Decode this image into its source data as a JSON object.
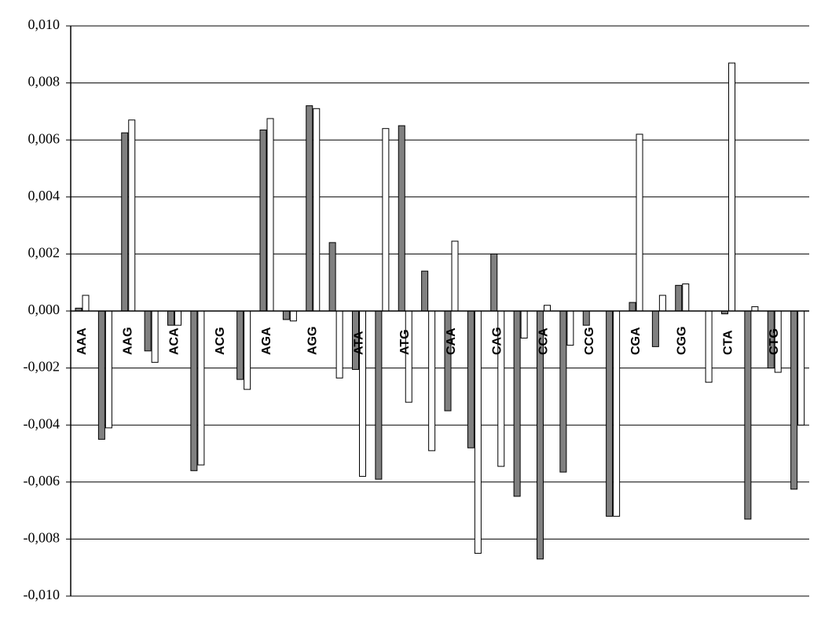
{
  "chart_data": {
    "type": "bar",
    "categories": [
      "AAA",
      null,
      "AAG",
      null,
      "ACA",
      null,
      "ACG",
      null,
      "AGA",
      null,
      "AGG",
      null,
      "ATA",
      null,
      "ATG",
      null,
      "CAA",
      null,
      "CAG",
      null,
      "CCA",
      null,
      "CCG",
      null,
      "CGA",
      null,
      "CGG",
      null,
      "CTA",
      null,
      "CTG",
      null
    ],
    "series": [
      {
        "color": "#808080",
        "values": [
          0.0001,
          -0.0045,
          0.00625,
          -0.0014,
          -0.0005,
          -0.0056,
          0,
          -0.0024,
          0.00635,
          -0.0003,
          0.0072,
          0.0024,
          -0.00205,
          -0.0059,
          0.0065,
          0.0014,
          -0.0035,
          -0.0048,
          0.002,
          -0.0065,
          -0.0087,
          -0.00565,
          -0.0005,
          -0.0072,
          0.0003,
          -0.00125,
          0.0009,
          0,
          -0.0001,
          -0.0073,
          -0.002,
          -0.00625
        ]
      },
      {
        "color": "#ffffff",
        "values": [
          0.00055,
          -0.0041,
          0.0067,
          -0.0018,
          -0.0005,
          -0.0054,
          0,
          -0.00275,
          0.00675,
          -0.00035,
          0.0071,
          -0.00235,
          -0.0058,
          0.0064,
          -0.0032,
          -0.0049,
          0.00245,
          -0.0085,
          -0.00545,
          -0.00095,
          0.0002,
          -0.0012,
          0,
          -0.0072,
          0.0062,
          0.00055,
          0.00095,
          -0.0025,
          0.0087,
          0.00015,
          -0.00215,
          -0.004
        ]
      }
    ],
    "ylim": [
      -0.01,
      0.01
    ],
    "yticks": [
      {
        "value": -0.01,
        "label": "-0,010"
      },
      {
        "value": -0.008,
        "label": "-0,008"
      },
      {
        "value": -0.006,
        "label": "-0,006"
      },
      {
        "value": -0.004,
        "label": "-0,004"
      },
      {
        "value": -0.002,
        "label": "-0,002"
      },
      {
        "value": 0,
        "label": "0,000"
      },
      {
        "value": 0.002,
        "label": "0,002"
      },
      {
        "value": 0.004,
        "label": "0,004"
      },
      {
        "value": 0.006,
        "label": "0,006"
      },
      {
        "value": 0.008,
        "label": "0,008"
      },
      {
        "value": 0.01,
        "label": "0,010"
      }
    ],
    "grid": true
  }
}
